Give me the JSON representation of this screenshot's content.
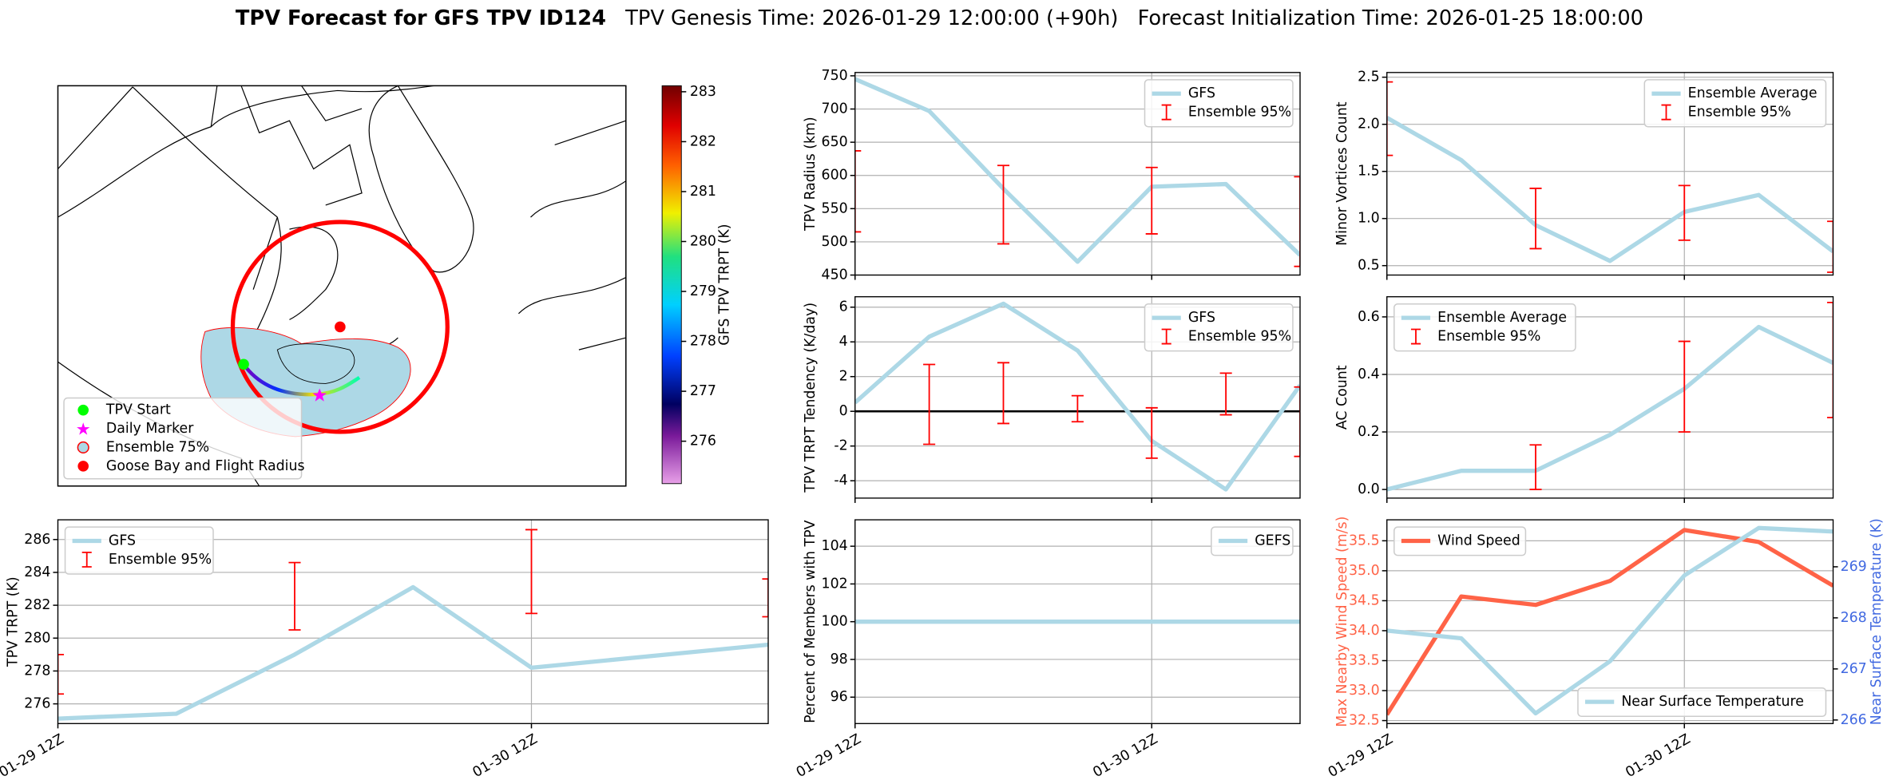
{
  "title": {
    "main": "TPV Forecast for GFS TPV ID124",
    "genesis": "TPV Genesis Time: 2026-01-29 12:00:00 (+90h)",
    "init": "Forecast Initialization Time: 2026-01-25 18:00:00"
  },
  "chart_data": [
    {
      "type": "map",
      "legend": [
        {
          "name": "TPV Start",
          "color": "#00ff00",
          "marker": "circle"
        },
        {
          "name": "Daily Marker",
          "color": "#ff00ff",
          "marker": "star"
        },
        {
          "name": "Ensemble 75%",
          "color": "#add8e6",
          "edgecolor": "#ff0000",
          "marker": "circle"
        },
        {
          "name": "Goose Bay and Flight Radius",
          "color": "#ff0000",
          "marker": "circle"
        }
      ],
      "colorbar": {
        "label": "GFS TPV TRPT (K)",
        "lim": [
          275.15,
          283.12
        ],
        "ticks": [
          276,
          277,
          278,
          279,
          280,
          281,
          282,
          283
        ]
      }
    },
    {
      "type": "line",
      "ylabel": "TPV Radius (km)",
      "xlim": [
        0,
        36
      ],
      "xticks": [
        0,
        24
      ],
      "xtick_labels": false,
      "ylim": [
        450,
        755
      ],
      "yticks": [
        450,
        500,
        550,
        600,
        650,
        700,
        750
      ],
      "grid": true,
      "legend": "upper right",
      "series": [
        {
          "name": "GFS",
          "color": "#add8e6",
          "x": [
            0,
            6,
            12,
            18,
            24,
            30,
            36
          ],
          "values": [
            745,
            697,
            580,
            470,
            583,
            587,
            480
          ]
        },
        {
          "name": "Ensemble 95%",
          "kind": "errorbar",
          "color": "#ff0000",
          "x": [
            0,
            12,
            24,
            36
          ],
          "low": [
            515,
            497,
            512,
            463
          ],
          "high": [
            637,
            615,
            612,
            598
          ]
        }
      ]
    },
    {
      "type": "line",
      "ylabel": "Minor Vortices Count",
      "xlim": [
        0,
        36
      ],
      "xticks": [
        0,
        24
      ],
      "xtick_labels": false,
      "ylim": [
        0.4,
        2.55
      ],
      "yticks": [
        0.5,
        {
          "value": 1,
          "label": "1.0"
        },
        1.5,
        {
          "value": 2,
          "label": "2.0"
        },
        2.5
      ],
      "grid": true,
      "legend": "upper right",
      "series": [
        {
          "name": "Ensemble Average",
          "color": "#add8e6",
          "x": [
            0,
            6,
            12,
            18,
            24,
            30,
            36
          ],
          "values": [
            2.07,
            1.62,
            0.93,
            0.55,
            1.07,
            1.25,
            0.65
          ]
        },
        {
          "name": "Ensemble 95%",
          "kind": "errorbar",
          "color": "#ff0000",
          "x": [
            0,
            12,
            24,
            36
          ],
          "low": [
            1.67,
            0.68,
            0.77,
            0.43
          ],
          "high": [
            2.45,
            1.32,
            1.35,
            0.97
          ]
        }
      ]
    },
    {
      "type": "line",
      "ylabel": "TPV TRPT Tendency (K/day)",
      "xlim": [
        0,
        36
      ],
      "xticks": [
        0,
        24
      ],
      "xtick_labels": false,
      "ylim": [
        -5,
        6.6
      ],
      "yticks": [
        -4,
        -2,
        0,
        2,
        4,
        6
      ],
      "grid": true,
      "legend": "upper right",
      "reference_line": 0,
      "series": [
        {
          "name": "GFS",
          "color": "#add8e6",
          "x": [
            0,
            6,
            12,
            18,
            24,
            30,
            36
          ],
          "values": [
            0.5,
            4.3,
            6.2,
            3.5,
            -1.7,
            -4.5,
            1.5
          ]
        },
        {
          "name": "Ensemble 95%",
          "kind": "errorbar",
          "color": "#ff0000",
          "x": [
            6,
            12,
            18,
            24,
            30,
            36
          ],
          "low": [
            -1.9,
            -0.7,
            -0.6,
            -2.7,
            -0.2,
            -2.6
          ],
          "high": [
            2.7,
            2.8,
            0.9,
            0.2,
            2.2,
            1.4
          ]
        }
      ]
    },
    {
      "type": "line",
      "ylabel": "AC Count",
      "xlim": [
        0,
        36
      ],
      "xticks": [
        0,
        24
      ],
      "xtick_labels": false,
      "ylim": [
        -0.03,
        0.67
      ],
      "yticks": [
        {
          "value": 0,
          "label": "0.0"
        },
        0.2,
        0.4,
        0.6
      ],
      "grid": true,
      "legend": "upper left",
      "series": [
        {
          "name": "Ensemble Average",
          "color": "#add8e6",
          "x": [
            0,
            6,
            12,
            18,
            24,
            30,
            36
          ],
          "values": [
            0,
            0.065,
            0.065,
            0.19,
            0.35,
            0.565,
            0.44
          ]
        },
        {
          "name": "Ensemble 95%",
          "kind": "errorbar",
          "color": "#ff0000",
          "x": [
            12,
            24,
            36
          ],
          "low": [
            0,
            0.2,
            0.25
          ],
          "high": [
            0.155,
            0.515,
            0.65
          ]
        }
      ]
    },
    {
      "type": "line",
      "ylabel": "TPV TRPT (K)",
      "xlim": [
        0,
        36
      ],
      "xticks": [
        {
          "value": 0,
          "label": "01-29 12Z"
        },
        {
          "value": 24,
          "label": "01-30 12Z"
        }
      ],
      "ylim": [
        274.8,
        287.2
      ],
      "yticks": [
        276,
        278,
        280,
        282,
        284,
        286
      ],
      "grid": true,
      "legend": "upper left",
      "series": [
        {
          "name": "GFS",
          "color": "#add8e6",
          "x": [
            0,
            6,
            12,
            18,
            24,
            36
          ],
          "values": [
            275.1,
            275.4,
            279,
            283.1,
            278.2,
            279.6
          ]
        },
        {
          "name": "Ensemble 95%",
          "kind": "errorbar",
          "color": "#ff0000",
          "x": [
            0,
            12,
            24,
            36
          ],
          "low": [
            276.6,
            280.5,
            281.5,
            281.3
          ],
          "high": [
            279,
            284.6,
            286.6,
            283.6
          ]
        }
      ]
    },
    {
      "type": "line",
      "ylabel": "Percent of Members with TPV",
      "xlim": [
        0,
        36
      ],
      "xticks": [
        {
          "value": 0,
          "label": "01-29 12Z"
        },
        {
          "value": 24,
          "label": "01-30 12Z"
        }
      ],
      "ylim": [
        94.6,
        105.4
      ],
      "yticks": [
        96,
        98,
        100,
        102,
        104
      ],
      "grid": true,
      "legend": "upper right",
      "series": [
        {
          "name": "GEFS",
          "color": "#add8e6",
          "x": [
            0,
            6,
            12,
            18,
            24,
            30,
            36
          ],
          "values": [
            100,
            100,
            100,
            100,
            100,
            100,
            100
          ]
        }
      ]
    },
    {
      "type": "line",
      "ylabel": "Max Nearby Wind Speed (m/s)",
      "ylabel_color": "#ff6347",
      "y2label": "Near Surface Temperature (K)",
      "y2label_color": "#4169e1",
      "xlim": [
        0,
        36
      ],
      "xticks": [
        {
          "value": 0,
          "label": "01-29 12Z"
        },
        {
          "value": 24,
          "label": "01-30 12Z"
        }
      ],
      "ylim": [
        32.45,
        35.85
      ],
      "yticks": [
        32.5,
        {
          "value": 33,
          "label": "33.0"
        },
        33.5,
        {
          "value": 34,
          "label": "34.0"
        },
        34.5,
        {
          "value": 35,
          "label": "35.0"
        },
        35.5
      ],
      "y2lim": [
        265.93,
        269.92
      ],
      "y2ticks": [
        266,
        267,
        268,
        269
      ],
      "grid": true,
      "legend": "upper left",
      "series": [
        {
          "name": "Wind Speed",
          "color": "#ff6347",
          "x": [
            0,
            6,
            12,
            18,
            24,
            30,
            36
          ],
          "values": [
            32.6,
            34.57,
            34.43,
            34.83,
            35.68,
            35.48,
            34.75
          ]
        },
        {
          "name": "Near Surface Temperature",
          "color": "#add8e6",
          "axis": "y2",
          "legend": "lower right",
          "x": [
            0,
            6,
            12,
            18,
            24,
            30,
            36
          ],
          "values": [
            267.75,
            267.6,
            266.13,
            267.15,
            268.83,
            269.76,
            269.69
          ]
        }
      ]
    }
  ]
}
